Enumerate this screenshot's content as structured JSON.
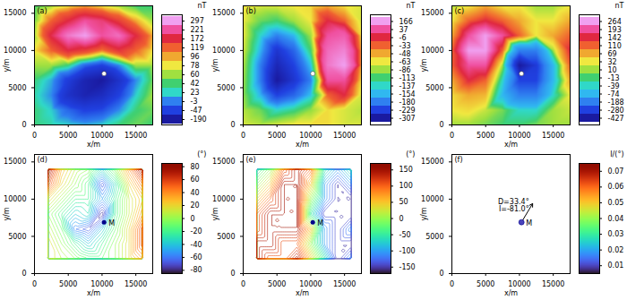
{
  "chart_data": [
    {
      "type": "heatmap",
      "title": "(a)",
      "x_label": "x/m",
      "y_label": "y/m",
      "xlim": [
        0,
        17500
      ],
      "ylim": [
        0,
        16000
      ],
      "xticks": [
        0,
        5000,
        10000,
        15000
      ],
      "yticks": [
        0,
        5000,
        10000,
        15000
      ],
      "grid_x": [
        0,
        2500,
        5000,
        7500,
        10000,
        12500,
        15000,
        17500
      ],
      "grid_y": [
        0,
        2000,
        4000,
        6000,
        8000,
        10000,
        12000,
        14000,
        16000
      ],
      "values": [
        [
          40,
          30,
          20,
          10,
          20,
          40,
          50,
          40
        ],
        [
          40,
          20,
          -20,
          -50,
          -40,
          0,
          40,
          50
        ],
        [
          30,
          0,
          -100,
          -150,
          -120,
          -50,
          20,
          60
        ],
        [
          40,
          10,
          -60,
          -150,
          -190,
          -100,
          0,
          50
        ],
        [
          60,
          60,
          40,
          -20,
          -50,
          0,
          60,
          60
        ],
        [
          80,
          120,
          172,
          150,
          110,
          160,
          119,
          80
        ],
        [
          60,
          180,
          260,
          297,
          221,
          250,
          172,
          96
        ],
        [
          50,
          119,
          172,
          221,
          200,
          150,
          96,
          60
        ],
        [
          40,
          60,
          78,
          96,
          78,
          60,
          42,
          40
        ]
      ],
      "points": [
        {
          "x": 10300,
          "y": 6900
        }
      ],
      "colorbar": {
        "label": "nT",
        "ticks": [
          -190,
          -47,
          -3,
          23,
          42,
          60,
          78,
          96,
          119,
          172,
          221,
          297
        ],
        "colors": [
          "#1a1aa0",
          "#2040e0",
          "#2f80f0",
          "#30d8c8",
          "#40d070",
          "#a0e040",
          "#f0e840",
          "#f0a830",
          "#f06030",
          "#e02840",
          "#f050a0",
          "#f0a0f0"
        ]
      }
    },
    {
      "type": "heatmap",
      "title": "(b)",
      "x_label": "x/m",
      "y_label": "y/m",
      "xlim": [
        0,
        17500
      ],
      "ylim": [
        0,
        16000
      ],
      "xticks": [
        0,
        5000,
        10000,
        15000
      ],
      "yticks": [
        0,
        5000,
        10000,
        15000
      ],
      "grid_x": [
        0,
        2500,
        5000,
        7500,
        10000,
        12500,
        15000,
        17500
      ],
      "grid_y": [
        0,
        2000,
        4000,
        6000,
        8000,
        10000,
        12000,
        14000,
        16000
      ],
      "values": [
        [
          -70,
          -80,
          -70,
          -60,
          -60,
          -60,
          -70,
          -70
        ],
        [
          -80,
          -100,
          -137,
          -120,
          -90,
          -60,
          -70,
          -80
        ],
        [
          -90,
          -154,
          -229,
          -200,
          -150,
          -33,
          -6,
          -70
        ],
        [
          -86,
          -180,
          -307,
          -250,
          -180,
          37,
          37,
          -60
        ],
        [
          -80,
          -180,
          -280,
          -229,
          -150,
          100,
          166,
          -48
        ],
        [
          -70,
          -154,
          -250,
          -200,
          -113,
          80,
          120,
          -48
        ],
        [
          -63,
          -137,
          -180,
          -154,
          -86,
          37,
          60,
          -60
        ],
        [
          -63,
          -100,
          -113,
          -86,
          -63,
          -6,
          -33,
          -70
        ],
        [
          -60,
          -70,
          -70,
          -63,
          -60,
          -48,
          -60,
          -70
        ]
      ],
      "points": [
        {
          "x": 10300,
          "y": 6900
        }
      ],
      "colorbar": {
        "label": "nT",
        "ticks": [
          -307,
          -229,
          -180,
          -154,
          -137,
          -113,
          -86,
          -63,
          -48,
          -33,
          -6,
          37,
          166
        ],
        "colors": [
          "#1a1aa0",
          "#2040e0",
          "#2f80f0",
          "#30b8f0",
          "#30d8c8",
          "#40d070",
          "#a0e040",
          "#f0e840",
          "#f0a830",
          "#f06030",
          "#e02840",
          "#f050a0",
          "#f0a0f0"
        ]
      }
    },
    {
      "type": "heatmap",
      "title": "(c)",
      "x_label": "x/m",
      "y_label": "y/m",
      "xlim": [
        0,
        17500
      ],
      "ylim": [
        0,
        16000
      ],
      "xticks": [
        0,
        5000,
        10000,
        15000
      ],
      "yticks": [
        0,
        5000,
        10000,
        15000
      ],
      "grid_x": [
        0,
        2500,
        5000,
        7500,
        10000,
        12500,
        15000,
        17500
      ],
      "grid_y": [
        0,
        2000,
        4000,
        6000,
        8000,
        10000,
        12000,
        14000,
        16000
      ],
      "values": [
        [
          10,
          10,
          0,
          -13,
          -13,
          0,
          10,
          10
        ],
        [
          32,
          40,
          20,
          0,
          -39,
          -40,
          10,
          20
        ],
        [
          40,
          69,
          60,
          -74,
          -188,
          -188,
          -39,
          32
        ],
        [
          69,
          142,
          110,
          -39,
          -280,
          -280,
          -74,
          69
        ],
        [
          110,
          193,
          193,
          10,
          -427,
          -300,
          -74,
          110
        ],
        [
          110,
          264,
          264,
          110,
          -188,
          -188,
          10,
          142
        ],
        [
          69,
          193,
          264,
          193,
          110,
          32,
          69,
          110
        ],
        [
          32,
          110,
          142,
          110,
          69,
          32,
          32,
          69
        ],
        [
          10,
          32,
          69,
          32,
          32,
          10,
          10,
          32
        ]
      ],
      "points": [
        {
          "x": 10300,
          "y": 6900
        }
      ],
      "colorbar": {
        "label": "nT",
        "ticks": [
          -427,
          -280,
          -188,
          -74,
          -39,
          -13,
          10,
          32,
          69,
          110,
          142,
          193,
          264
        ],
        "colors": [
          "#1a1aa0",
          "#2040e0",
          "#2f80f0",
          "#30b8f0",
          "#30d8c8",
          "#40d070",
          "#a0e040",
          "#f0e840",
          "#f0a830",
          "#f06030",
          "#e02840",
          "#f050a0",
          "#f0a0f0"
        ]
      }
    },
    {
      "type": "contour",
      "title": "(d)",
      "x_label": "x/m",
      "y_label": "y/m",
      "xlim": [
        0,
        17500
      ],
      "ylim": [
        0,
        16000
      ],
      "xticks": [
        0,
        5000,
        10000,
        15000
      ],
      "yticks": [
        0,
        5000,
        10000,
        15000
      ],
      "grid_x": [
        2000,
        4000,
        6000,
        8000,
        10000,
        12000,
        14000,
        16000
      ],
      "grid_y": [
        2000,
        4000,
        6000,
        8000,
        10000,
        12000,
        14000
      ],
      "values": [
        [
          20,
          10,
          0,
          -10,
          -10,
          0,
          20,
          40
        ],
        [
          20,
          0,
          -20,
          -40,
          -20,
          0,
          20,
          60
        ],
        [
          10,
          -10,
          -60,
          -70,
          -40,
          -10,
          20,
          60
        ],
        [
          0,
          -20,
          -40,
          -30,
          -80,
          -20,
          10,
          40
        ],
        [
          20,
          0,
          -20,
          -20,
          -50,
          -20,
          10,
          30
        ],
        [
          60,
          20,
          0,
          -20,
          -70,
          -30,
          20,
          50
        ],
        [
          80,
          30,
          10,
          0,
          -30,
          0,
          40,
          80
        ]
      ],
      "points": [
        {
          "label": "M",
          "x": 10300,
          "y": 6900
        }
      ],
      "colorbar": {
        "label": "(°)",
        "range": [
          -85,
          85
        ],
        "ticks": [
          -80,
          -60,
          -40,
          -20,
          0,
          20,
          40,
          60,
          80
        ]
      }
    },
    {
      "type": "contour",
      "title": "(e)",
      "x_label": "x/m",
      "y_label": "y/m",
      "xlim": [
        0,
        17500
      ],
      "ylim": [
        0,
        16000
      ],
      "xticks": [
        0,
        5000,
        10000,
        15000
      ],
      "yticks": [
        0,
        5000,
        10000,
        15000
      ],
      "grid_x": [
        2000,
        4000,
        6000,
        8000,
        10000,
        12000,
        14000,
        16000
      ],
      "grid_y": [
        2000,
        4000,
        6000,
        8000,
        10000,
        12000,
        14000
      ],
      "values": [
        [
          150,
          100,
          100,
          150,
          50,
          -50,
          -150,
          -100
        ],
        [
          150,
          150,
          100,
          100,
          0,
          -100,
          -150,
          -150
        ],
        [
          100,
          150,
          150,
          150,
          50,
          -100,
          -150,
          -100
        ],
        [
          100,
          150,
          150,
          150,
          -50,
          -150,
          -150,
          -150
        ],
        [
          50,
          100,
          150,
          150,
          0,
          -100,
          -150,
          -150
        ],
        [
          0,
          50,
          150,
          150,
          50,
          -100,
          -150,
          -100
        ],
        [
          -50,
          0,
          100,
          150,
          100,
          -50,
          -100,
          -50
        ]
      ],
      "points": [
        {
          "label": "M",
          "x": 10300,
          "y": 6900
        }
      ],
      "colorbar": {
        "label": "(°)",
        "range": [
          -170,
          170
        ],
        "ticks": [
          -150,
          -100,
          -50,
          0,
          50,
          100,
          150
        ]
      }
    },
    {
      "type": "scatter",
      "title": "(f)",
      "x_label": "x/m",
      "y_label": "y/m",
      "xlim": [
        0,
        17500
      ],
      "ylim": [
        0,
        16000
      ],
      "xticks": [
        0,
        5000,
        10000,
        15000
      ],
      "yticks": [
        0,
        5000,
        10000,
        15000
      ],
      "points": [
        {
          "label": "M",
          "x": 10300,
          "y": 6900,
          "value": 0.01
        }
      ],
      "arrow_azimuth": 33.4,
      "annotations": [
        "D=33.4°",
        "I=-81.0°"
      ],
      "colorbar": {
        "label": "I/(°)",
        "range": [
          0.005,
          0.075
        ],
        "ticks": [
          0.01,
          0.02,
          0.03,
          0.04,
          0.05,
          0.06,
          0.07
        ]
      }
    }
  ]
}
